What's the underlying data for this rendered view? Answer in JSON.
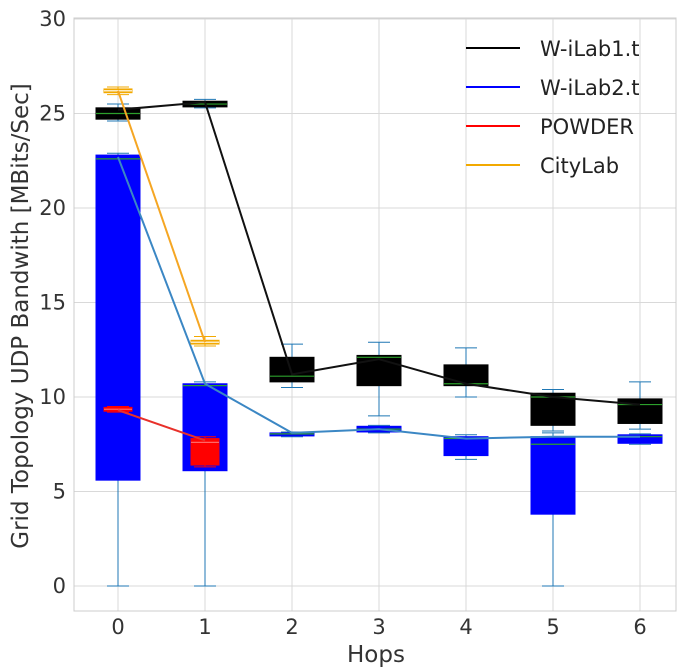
{
  "chart_data": {
    "type": "box",
    "xlabel": "Hops",
    "ylabel": "Grid Topology UDP Bandwith  [MBits/Sec]",
    "ylim": [
      0,
      30
    ],
    "yticks": [
      0,
      5,
      10,
      15,
      20,
      25,
      30
    ],
    "categories": [
      0,
      1,
      2,
      3,
      4,
      5,
      6
    ],
    "grid": true,
    "legend_position": "top-right",
    "series": [
      {
        "name": "W-iLab1.t",
        "color": "#000000",
        "line_color": "#111111",
        "median_color": "#2ca02c",
        "whisker_color": "#1f77b4",
        "boxes": [
          {
            "x": 0,
            "whislo": 24.6,
            "q1": 24.7,
            "med": 25.0,
            "q3": 25.3,
            "whishi": 25.5
          },
          {
            "x": 1,
            "whislo": 25.3,
            "q1": 25.35,
            "med": 25.5,
            "q3": 25.65,
            "whishi": 25.75
          },
          {
            "x": 2,
            "whislo": 10.5,
            "q1": 10.8,
            "med": 11.1,
            "q3": 12.1,
            "whishi": 12.8
          },
          {
            "x": 3,
            "whislo": 9.0,
            "q1": 10.6,
            "med": 12.1,
            "q3": 12.2,
            "whishi": 12.9
          },
          {
            "x": 4,
            "whislo": 10.0,
            "q1": 10.6,
            "med": 10.7,
            "q3": 11.7,
            "whishi": 12.6
          },
          {
            "x": 5,
            "whislo": 8.2,
            "q1": 8.5,
            "med": 10.0,
            "q3": 10.2,
            "whishi": 10.4
          },
          {
            "x": 6,
            "whislo": 8.3,
            "q1": 8.6,
            "med": 9.6,
            "q3": 9.9,
            "whishi": 10.8
          }
        ],
        "mean_line": [
          25.2,
          25.6,
          11.2,
          12.0,
          10.7,
          10.0,
          9.6
        ]
      },
      {
        "name": "W-iLab2.t",
        "color": "#0000ff",
        "line_color": "#3b87c4",
        "median_color": "#2ca02c",
        "whisker_color": "#1f77b4",
        "boxes": [
          {
            "x": 0,
            "whislo": 0,
            "q1": 5.6,
            "med": 22.6,
            "q3": 22.8,
            "whishi": 22.9
          },
          {
            "x": 1,
            "whislo": 0,
            "q1": 6.1,
            "med": 10.6,
            "q3": 10.7,
            "whishi": 10.8
          },
          {
            "x": 2,
            "whislo": 7.9,
            "q1": 7.95,
            "med": 8.05,
            "q3": 8.1,
            "whishi": 8.15
          },
          {
            "x": 3,
            "whislo": 8.1,
            "q1": 8.15,
            "med": 8.3,
            "q3": 8.45,
            "whishi": 8.5
          },
          {
            "x": 4,
            "whislo": 6.7,
            "q1": 6.9,
            "med": 7.8,
            "q3": 7.9,
            "whishi": 8.0
          },
          {
            "x": 5,
            "whislo": 0,
            "q1": 3.8,
            "med": 7.5,
            "q3": 7.9,
            "whishi": 8.1
          },
          {
            "x": 6,
            "whislo": 7.5,
            "q1": 7.55,
            "med": 7.9,
            "q3": 8.0,
            "whishi": 8.05
          }
        ],
        "mean_line": [
          22.7,
          10.7,
          8.1,
          8.3,
          7.8,
          7.9,
          7.9
        ]
      },
      {
        "name": "POWDER",
        "color": "#ff0000",
        "line_color": "#e8302a",
        "median_color": "#ff6666",
        "whisker_color": "#ff0000",
        "boxes": [
          {
            "x": 0,
            "whislo": 9.2,
            "q1": 9.25,
            "med": 9.35,
            "q3": 9.45,
            "whishi": 9.5
          },
          {
            "x": 1,
            "whislo": 6.3,
            "q1": 6.4,
            "med": 7.6,
            "q3": 7.8,
            "whishi": 7.9
          }
        ],
        "mean_line": [
          9.3,
          7.7
        ]
      },
      {
        "name": "CityLab",
        "color": "#f2a900",
        "line_color": "#f5a623",
        "median_color": "#ffffff",
        "whisker_color": "#f2a900",
        "boxes": [
          {
            "x": 0,
            "whislo": 26.0,
            "q1": 26.1,
            "med": 26.2,
            "q3": 26.3,
            "whishi": 26.4
          },
          {
            "x": 1,
            "whislo": 12.7,
            "q1": 12.8,
            "med": 12.9,
            "q3": 13.0,
            "whishi": 13.2
          }
        ],
        "mean_line": [
          26.2,
          12.9
        ]
      }
    ],
    "legend": [
      {
        "label": "W-iLab1.t",
        "color": "#000000"
      },
      {
        "label": "W-iLab2.t",
        "color": "#0000ff"
      },
      {
        "label": "POWDER",
        "color": "#ff0000"
      },
      {
        "label": "CityLab",
        "color": "#f2a900"
      }
    ]
  }
}
